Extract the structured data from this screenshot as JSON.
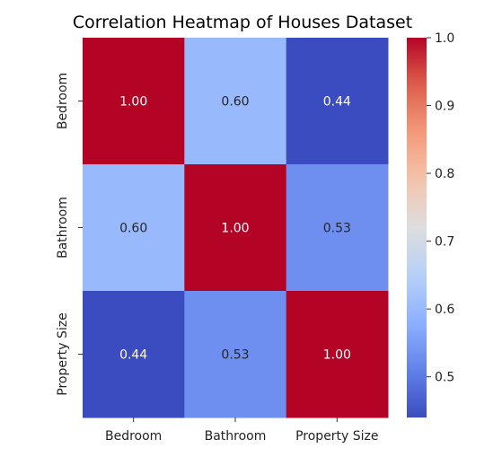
{
  "chart_data": {
    "type": "heatmap",
    "title": "Correlation Heatmap of Houses Dataset",
    "x_categories": [
      "Bedroom",
      "Bathroom",
      "Property Size"
    ],
    "y_categories": [
      "Bedroom",
      "Bathroom",
      "Property Size"
    ],
    "values": [
      [
        1.0,
        0.6,
        0.44
      ],
      [
        0.6,
        1.0,
        0.53
      ],
      [
        0.44,
        0.53,
        1.0
      ]
    ],
    "value_format": "0.00",
    "colormap": "coolwarm",
    "colorbar": {
      "range": [
        0.44,
        1.0
      ],
      "ticks": [
        0.5,
        0.6,
        0.7,
        0.8,
        0.9,
        1.0
      ],
      "tick_labels": [
        "0.5",
        "0.6",
        "0.7",
        "0.8",
        "0.9",
        "1.0"
      ],
      "placement": "right"
    }
  }
}
